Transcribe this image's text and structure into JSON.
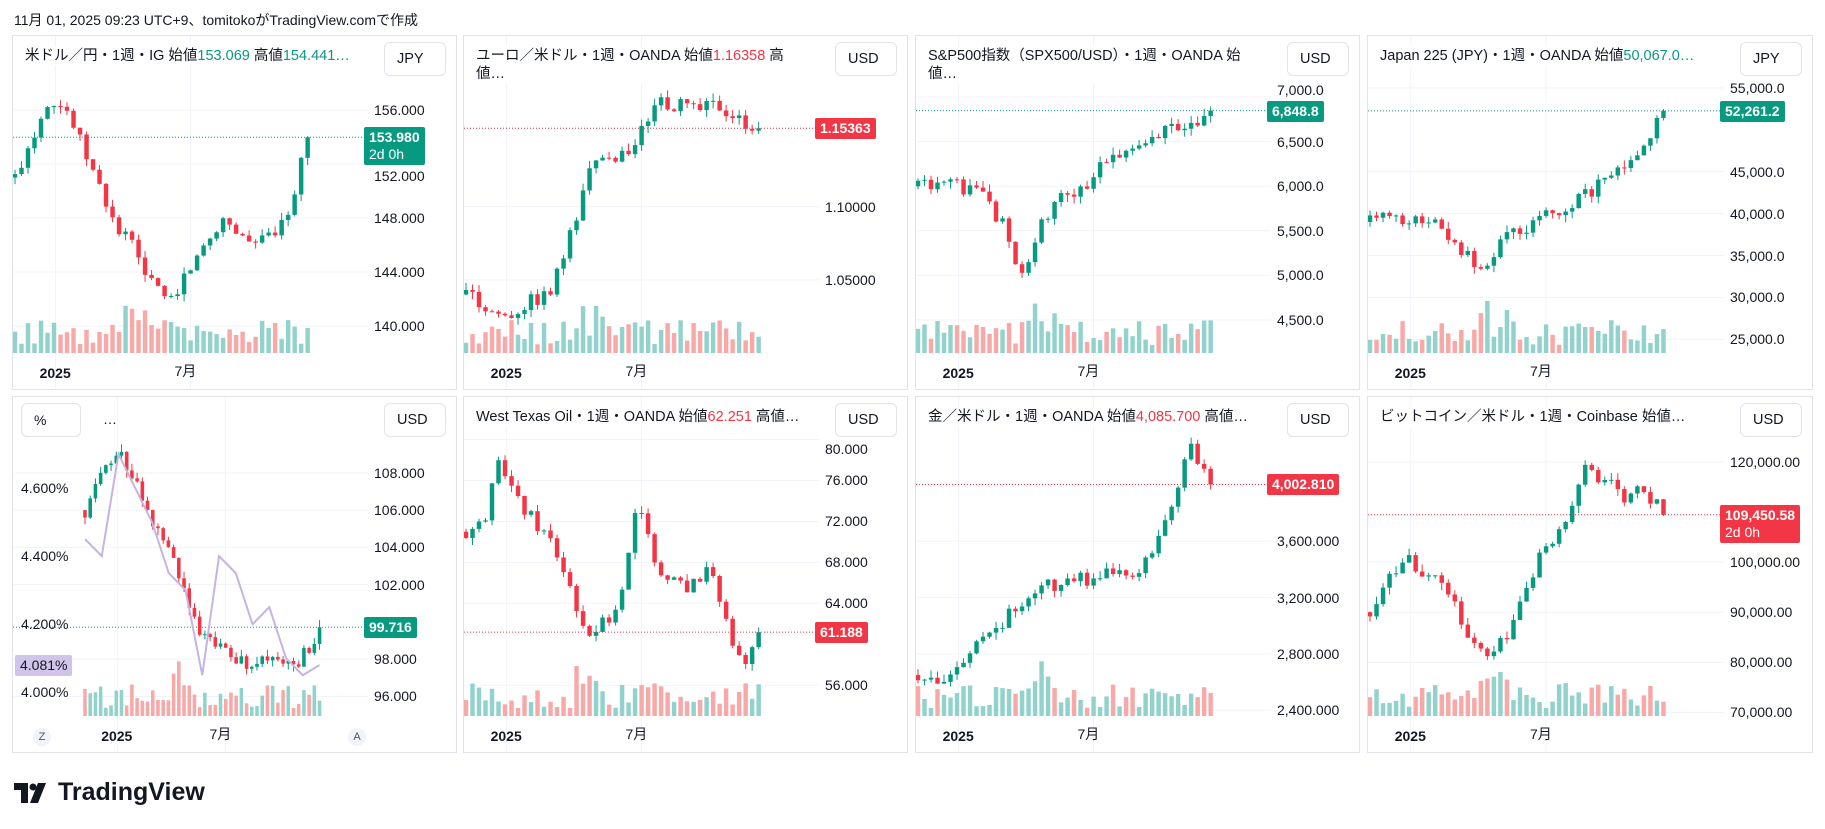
{
  "caption": "11月 01, 2025 09:23 UTC+9、tomitokoがTradingView.comで作成",
  "logo": "TradingView",
  "colors": {
    "up": "#089981",
    "down": "#f23645",
    "vol_up": "#92d2cc",
    "vol_down": "#f7a9a7",
    "purple": "#c5b4e3"
  },
  "panels": [
    {
      "id": "usdjpy",
      "header": [
        {
          "t": "米ドル／円・1週・IG  始値"
        },
        {
          "t": "153.069",
          "c": "up"
        },
        {
          "t": "  高値"
        },
        {
          "t": "154.441…",
          "c": "up"
        }
      ],
      "currency": "JPY",
      "ylim": [
        138,
        160
      ],
      "ticks": [
        "156.000",
        "152.000",
        "148.000",
        "144.000",
        "140.000"
      ],
      "tick_values": [
        156,
        152,
        148,
        144,
        140
      ],
      "last": {
        "value": 153.98,
        "text": "153.980",
        "sub": "2d 0h",
        "color": "up"
      },
      "x_labels": [
        "2025",
        "7月"
      ],
      "end": 0.83,
      "closes": [
        151,
        154,
        157,
        156,
        153,
        150,
        147,
        146,
        143,
        142,
        144,
        146,
        148,
        147,
        146,
        147,
        149,
        154
      ]
    },
    {
      "id": "eurusd",
      "header": [
        {
          "t": "ユーロ／米ドル・1週・OANDA  始値"
        },
        {
          "t": "1.16358",
          "c": "down"
        },
        {
          "t": "  高値…"
        }
      ],
      "currency": "USD",
      "ylim": [
        1.0,
        1.203
      ],
      "ticks": [
        "1.10000",
        "1.05000"
      ],
      "tick_values": [
        1.1,
        1.05
      ],
      "last": {
        "value": 1.15363,
        "text": "1.15363",
        "color": "down"
      },
      "x_labels": [
        "2025",
        "7月"
      ],
      "end": 0.83,
      "closes": [
        1.04,
        1.03,
        1.025,
        1.035,
        1.04,
        1.08,
        1.13,
        1.13,
        1.14,
        1.17,
        1.17,
        1.165,
        1.17,
        1.16,
        1.154
      ]
    },
    {
      "id": "spx500",
      "header": [
        {
          "t": "S&P500指数（SPX500/USD）・1週・OANDA  始値…"
        }
      ],
      "currency": "USD",
      "ylim": [
        4129,
        7461
      ],
      "ticks": [
        "7,000.0",
        "6,500.0",
        "6,000.0",
        "5,500.0",
        "5,000.0",
        "4,500.0"
      ],
      "tick_values": [
        7000,
        6500,
        6000,
        5500,
        5000,
        4500
      ],
      "last": {
        "value": 6848.8,
        "text": "6,848.8",
        "color": "up"
      },
      "x_labels": [
        "2025",
        "7月"
      ],
      "end": 0.83,
      "closes": [
        6000,
        6050,
        6000,
        5900,
        5600,
        5000,
        5600,
        5900,
        6000,
        6300,
        6400,
        6500,
        6650,
        6700,
        6849
      ]
    },
    {
      "id": "jp225",
      "header": [
        {
          "t": "Japan 225 (JPY)・1週・OANDA  始値"
        },
        {
          "t": "50,067.0…",
          "c": "up"
        }
      ],
      "currency": "JPY",
      "ylim": [
        23370,
        58800
      ],
      "ticks": [
        "55,000.0",
        "45,000.0",
        "40,000.0",
        "35,000.0",
        "30,000.0",
        "25,000.0"
      ],
      "tick_values": [
        55000,
        45000,
        40000,
        35000,
        30000,
        25000
      ],
      "last": {
        "value": 52261.2,
        "text": "52,261.2",
        "color": "up"
      },
      "x_labels": [
        "2025",
        "7月"
      ],
      "end": 0.83,
      "closes": [
        39000,
        39500,
        39000,
        38500,
        36000,
        33000,
        37000,
        38000,
        40000,
        41000,
        43000,
        45000,
        48000,
        52261
      ]
    },
    {
      "id": "bond",
      "header": [],
      "percent_label": "%",
      "more": "…",
      "z": "Z",
      "a": "A",
      "currency": "USD",
      "ylim": [
        94.95,
        111
      ],
      "ticks": [
        "108.000",
        "106.000",
        "104.000",
        "102.000",
        "98.000",
        "96.000"
      ],
      "tick_values": [
        108,
        106,
        104,
        102,
        98,
        96
      ],
      "last": {
        "value": 99.716,
        "text": "99.716",
        "color": "up"
      },
      "x_labels": [
        "2025",
        "7月"
      ],
      "end": 0.83,
      "left_axis": {
        "ylim": [
          3.93,
          4.809
        ],
        "ticks": [
          "4.600%",
          "4.400%",
          "4.200%",
          "4.000%"
        ],
        "tick_values": [
          4.6,
          4.4,
          4.2,
          4.0
        ],
        "last": {
          "value": 4.081,
          "text": "4.081%"
        }
      },
      "overlay": [
        4.45,
        4.4,
        4.7,
        4.6,
        4.5,
        4.35,
        4.3,
        4.05,
        4.4,
        4.35,
        4.2,
        4.25,
        4.1,
        4.05,
        4.08
      ],
      "closes": [
        106,
        108,
        109,
        107,
        105,
        103,
        100,
        99,
        98.5,
        97.5,
        98,
        97.5,
        98,
        99.7
      ]
    },
    {
      "id": "wti",
      "header": [
        {
          "t": "West Texas Oil・1週・OANDA  始値"
        },
        {
          "t": "62.251",
          "c": "down"
        },
        {
          "t": "  高値…"
        }
      ],
      "currency": "USD",
      "ylim": [
        53,
        82.2
      ],
      "ticks": [
        "80.000",
        "76.000",
        "72.000",
        "68.000",
        "64.000",
        "56.000"
      ],
      "tick_values": [
        80,
        76,
        72,
        68,
        64,
        56
      ],
      "last": {
        "value": 61.188,
        "text": "61.188",
        "color": "down"
      },
      "x_labels": [
        "2025",
        "7月"
      ],
      "end": 0.83,
      "closes": [
        71,
        72,
        78,
        74,
        72,
        70,
        66,
        61,
        62,
        64,
        75,
        67,
        66,
        65,
        68,
        63,
        58,
        61.2
      ]
    },
    {
      "id": "gold",
      "header": [
        {
          "t": "金／米ドル・1週・OANDA  始値"
        },
        {
          "t": "4,085.700",
          "c": "down"
        },
        {
          "t": "  高値…"
        }
      ],
      "currency": "USD",
      "ylim": [
        2359,
        4482
      ],
      "ticks": [
        "3,600.000",
        "3,200.000",
        "2,800.000",
        "2,400.000"
      ],
      "tick_values": [
        3600,
        3200,
        2800,
        2400
      ],
      "last": {
        "value": 4002.81,
        "text": "4,002.810",
        "color": "down"
      },
      "x_labels": [
        "2025",
        "7月"
      ],
      "end": 0.83,
      "closes": [
        2650,
        2620,
        2700,
        2850,
        2950,
        3150,
        3250,
        3300,
        3350,
        3320,
        3400,
        3350,
        3550,
        3800,
        4300,
        4003
      ]
    },
    {
      "id": "btc",
      "header": [
        {
          "t": "ビットコイン／米ドル・1週・Coinbase  始値…"
        }
      ],
      "currency": "USD",
      "ylim": [
        69300,
        128950
      ],
      "ticks": [
        "120,000.00",
        "100,000.00",
        "90,000.00",
        "80,000.00",
        "70,000.00"
      ],
      "tick_values": [
        120000,
        100000,
        90000,
        80000,
        70000
      ],
      "last": {
        "value": 109450.58,
        "text": "109,450.58",
        "sub": "2d 0h",
        "color": "down"
      },
      "x_labels": [
        "2025",
        "7月"
      ],
      "end": 0.83,
      "closes": [
        90000,
        98000,
        100000,
        97000,
        95000,
        84000,
        82000,
        86000,
        95000,
        104000,
        107000,
        118000,
        117000,
        112000,
        115000,
        109450
      ]
    }
  ]
}
